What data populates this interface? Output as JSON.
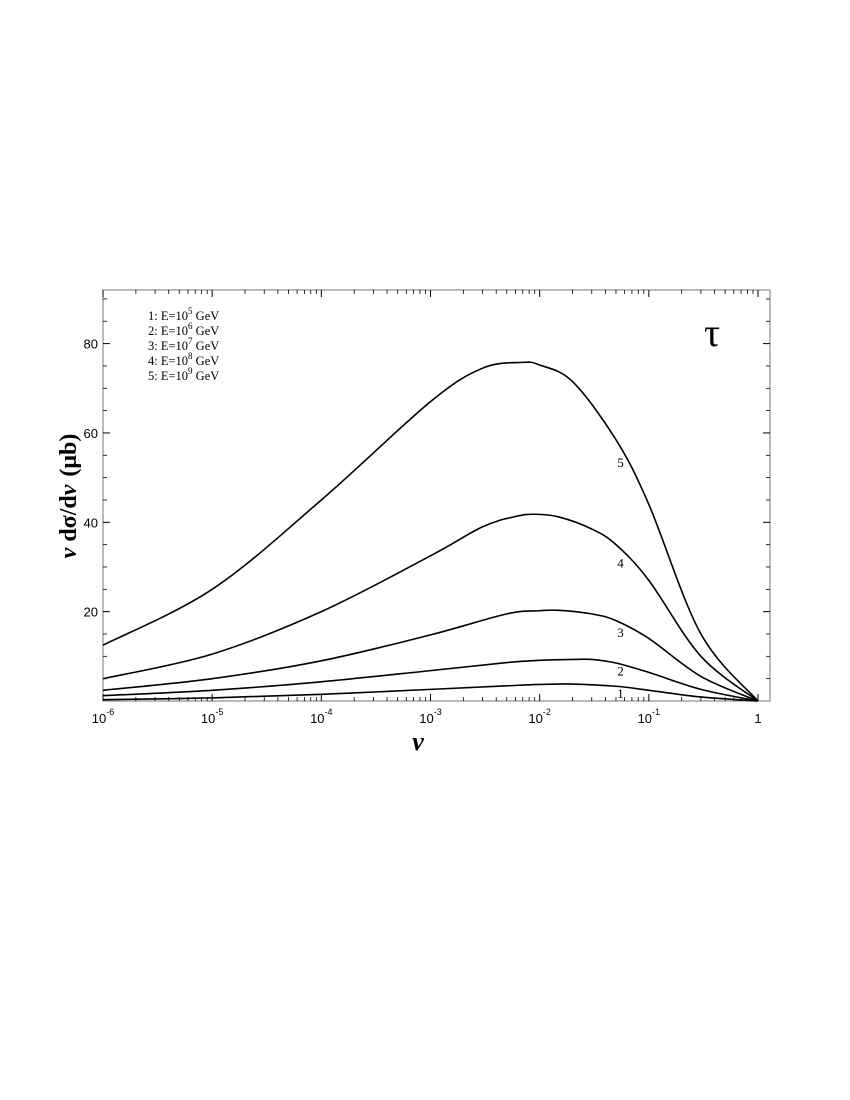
{
  "chart_data": {
    "type": "line",
    "title": "τ",
    "xlabel": "v",
    "ylabel_prefix": "v",
    "ylabel_mid": " dσ/d",
    "ylabel_var": "v",
    "ylabel_unit": "(μb)",
    "x_scale": "log",
    "xlim": [
      1e-06,
      1
    ],
    "ylim": [
      0,
      92
    ],
    "x_ticks": [
      {
        "value": 1e-06,
        "base": "10",
        "exp": "-6"
      },
      {
        "value": 1e-05,
        "base": "10",
        "exp": "-5"
      },
      {
        "value": 0.0001,
        "base": "10",
        "exp": "-4"
      },
      {
        "value": 0.001,
        "base": "10",
        "exp": "-3"
      },
      {
        "value": 0.01,
        "base": "10",
        "exp": "-2"
      },
      {
        "value": 0.1,
        "base": "10",
        "exp": "-1"
      },
      {
        "value": 1,
        "base": "1",
        "exp": ""
      }
    ],
    "y_ticks": [
      {
        "value": 20,
        "label": "20"
      },
      {
        "value": 40,
        "label": "40"
      },
      {
        "value": 60,
        "label": "60"
      },
      {
        "value": 80,
        "label": "80"
      }
    ],
    "legend_placement": "top-left",
    "legend": [
      {
        "prefix": "1: E=10",
        "exp": "5",
        "suffix": " GeV"
      },
      {
        "prefix": "2: E=10",
        "exp": "6",
        "suffix": " GeV"
      },
      {
        "prefix": "3: E=10",
        "exp": "7",
        "suffix": " GeV"
      },
      {
        "prefix": "4: E=10",
        "exp": "8",
        "suffix": " GeV"
      },
      {
        "prefix": "5: E=10",
        "exp": "9",
        "suffix": " GeV"
      }
    ],
    "series": [
      {
        "label": "1",
        "label_at": {
          "x": 0.055,
          "y": 1.8
        },
        "points": [
          [
            1e-06,
            0.3
          ],
          [
            1e-05,
            0.7
          ],
          [
            0.0001,
            1.5
          ],
          [
            0.001,
            2.6
          ],
          [
            0.005,
            3.4
          ],
          [
            0.01,
            3.7
          ],
          [
            0.02,
            3.8
          ],
          [
            0.05,
            3.3
          ],
          [
            0.1,
            2.4
          ],
          [
            0.3,
            0.9
          ],
          [
            1,
            0
          ]
        ]
      },
      {
        "label": "2",
        "label_at": {
          "x": 0.055,
          "y": 6.8
        },
        "points": [
          [
            1e-06,
            1.2
          ],
          [
            1e-05,
            2.4
          ],
          [
            0.0001,
            4.3
          ],
          [
            0.001,
            6.8
          ],
          [
            0.005,
            8.6
          ],
          [
            0.01,
            9.1
          ],
          [
            0.02,
            9.3
          ],
          [
            0.03,
            9.3
          ],
          [
            0.05,
            8.5
          ],
          [
            0.1,
            6.4
          ],
          [
            0.3,
            2.6
          ],
          [
            1,
            0
          ]
        ]
      },
      {
        "label": "3",
        "label_at": {
          "x": 0.055,
          "y": 15.5
        },
        "points": [
          [
            1e-06,
            2.4
          ],
          [
            1e-05,
            5.0
          ],
          [
            0.0001,
            9.0
          ],
          [
            0.001,
            14.8
          ],
          [
            0.005,
            19.5
          ],
          [
            0.01,
            20.2
          ],
          [
            0.015,
            20.3
          ],
          [
            0.03,
            19.5
          ],
          [
            0.05,
            18.0
          ],
          [
            0.1,
            14.0
          ],
          [
            0.3,
            5.5
          ],
          [
            1,
            0
          ]
        ]
      },
      {
        "label": "4",
        "label_at": {
          "x": 0.055,
          "y": 31.0
        },
        "points": [
          [
            1e-06,
            5.0
          ],
          [
            1e-05,
            10.5
          ],
          [
            0.0001,
            20.0
          ],
          [
            0.001,
            32.5
          ],
          [
            0.003,
            39.0
          ],
          [
            0.006,
            41.3
          ],
          [
            0.009,
            41.8
          ],
          [
            0.015,
            41.2
          ],
          [
            0.03,
            38.5
          ],
          [
            0.05,
            35.0
          ],
          [
            0.1,
            27.0
          ],
          [
            0.3,
            10.0
          ],
          [
            1,
            0
          ]
        ]
      },
      {
        "label": "5",
        "label_at": {
          "x": 0.055,
          "y": 53.5
        },
        "points": [
          [
            1e-06,
            12.5
          ],
          [
            1e-05,
            25.0
          ],
          [
            0.0001,
            45.0
          ],
          [
            0.001,
            67.0
          ],
          [
            0.003,
            74.5
          ],
          [
            0.007,
            75.8
          ],
          [
            0.01,
            75.2
          ],
          [
            0.02,
            71.5
          ],
          [
            0.05,
            58.5
          ],
          [
            0.1,
            44.0
          ],
          [
            0.3,
            15.0
          ],
          [
            1,
            0
          ]
        ]
      }
    ]
  }
}
